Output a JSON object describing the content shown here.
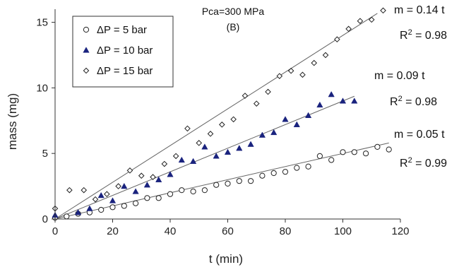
{
  "chart_data": {
    "type": "scatter",
    "title": "Pca=300 MPa",
    "subtitle": "(B)",
    "xlabel": "t (min)",
    "ylabel": "mass (mg)",
    "xlim": [
      0,
      120
    ],
    "ylim": [
      0,
      16
    ],
    "xticks": [
      "0",
      "20",
      "40",
      "60",
      "80",
      "100",
      "120"
    ],
    "yticks": [
      "0",
      "5",
      "10",
      "15"
    ],
    "grid": false,
    "legend_position": "top-left",
    "series": [
      {
        "name": "ΔP = 5 bar",
        "marker": "circle-open",
        "color": "#222222",
        "x": [
          0,
          4,
          8,
          12,
          16,
          20,
          24,
          28,
          32,
          36,
          40,
          44,
          48,
          52,
          56,
          60,
          64,
          68,
          72,
          76,
          80,
          84,
          88,
          92,
          96,
          100,
          104,
          108,
          112,
          116
        ],
        "y": [
          0.1,
          0.2,
          0.4,
          0.5,
          0.7,
          0.9,
          1.0,
          1.2,
          1.6,
          1.6,
          1.9,
          2.2,
          2.1,
          2.2,
          2.6,
          2.7,
          2.9,
          2.9,
          3.3,
          3.5,
          3.6,
          3.9,
          4.0,
          4.8,
          4.5,
          5.1,
          5.1,
          5.0,
          5.5,
          5.3
        ],
        "fit": {
          "slope": 0.05,
          "label": "m = 0.05 t",
          "r2": "0.99",
          "x_end": 116
        }
      },
      {
        "name": "ΔP = 10 bar",
        "marker": "triangle-filled",
        "color": "#1a237e",
        "x": [
          0,
          8,
          12,
          16,
          20,
          24,
          28,
          32,
          36,
          40,
          44,
          48,
          52,
          56,
          60,
          64,
          68,
          72,
          76,
          80,
          84,
          88,
          92,
          96,
          100,
          104
        ],
        "y": [
          0.3,
          0.5,
          0.8,
          1.8,
          1.4,
          2.5,
          2.1,
          2.6,
          3.0,
          3.4,
          4.5,
          4.4,
          5.5,
          4.8,
          5.1,
          5.4,
          5.7,
          6.4,
          6.6,
          7.6,
          7.2,
          7.9,
          8.7,
          9.5,
          9.0,
          9.0
        ],
        "fit": {
          "slope": 0.09,
          "label": "m = 0.09 t",
          "r2": "0.98",
          "x_end": 104
        }
      },
      {
        "name": "ΔP = 15 bar",
        "marker": "diamond-open",
        "color": "#222222",
        "x": [
          0,
          5,
          10,
          14,
          18,
          22,
          26,
          30,
          34,
          38,
          42,
          46,
          50,
          54,
          58,
          62,
          66,
          70,
          74,
          78,
          82,
          86,
          90,
          94,
          98,
          102,
          106,
          110,
          114
        ],
        "y": [
          0.8,
          2.2,
          2.2,
          1.5,
          1.9,
          2.5,
          3.7,
          3.3,
          3.2,
          4.2,
          4.8,
          6.9,
          5.8,
          6.5,
          7.2,
          7.6,
          9.4,
          8.8,
          9.7,
          10.9,
          11.3,
          11.0,
          11.9,
          12.5,
          13.7,
          14.5,
          15.1,
          15.2,
          15.9
        ],
        "fit": {
          "slope": 0.14,
          "label": "m = 0.14 t",
          "r2": "0.98",
          "x_end": 112
        }
      }
    ]
  }
}
